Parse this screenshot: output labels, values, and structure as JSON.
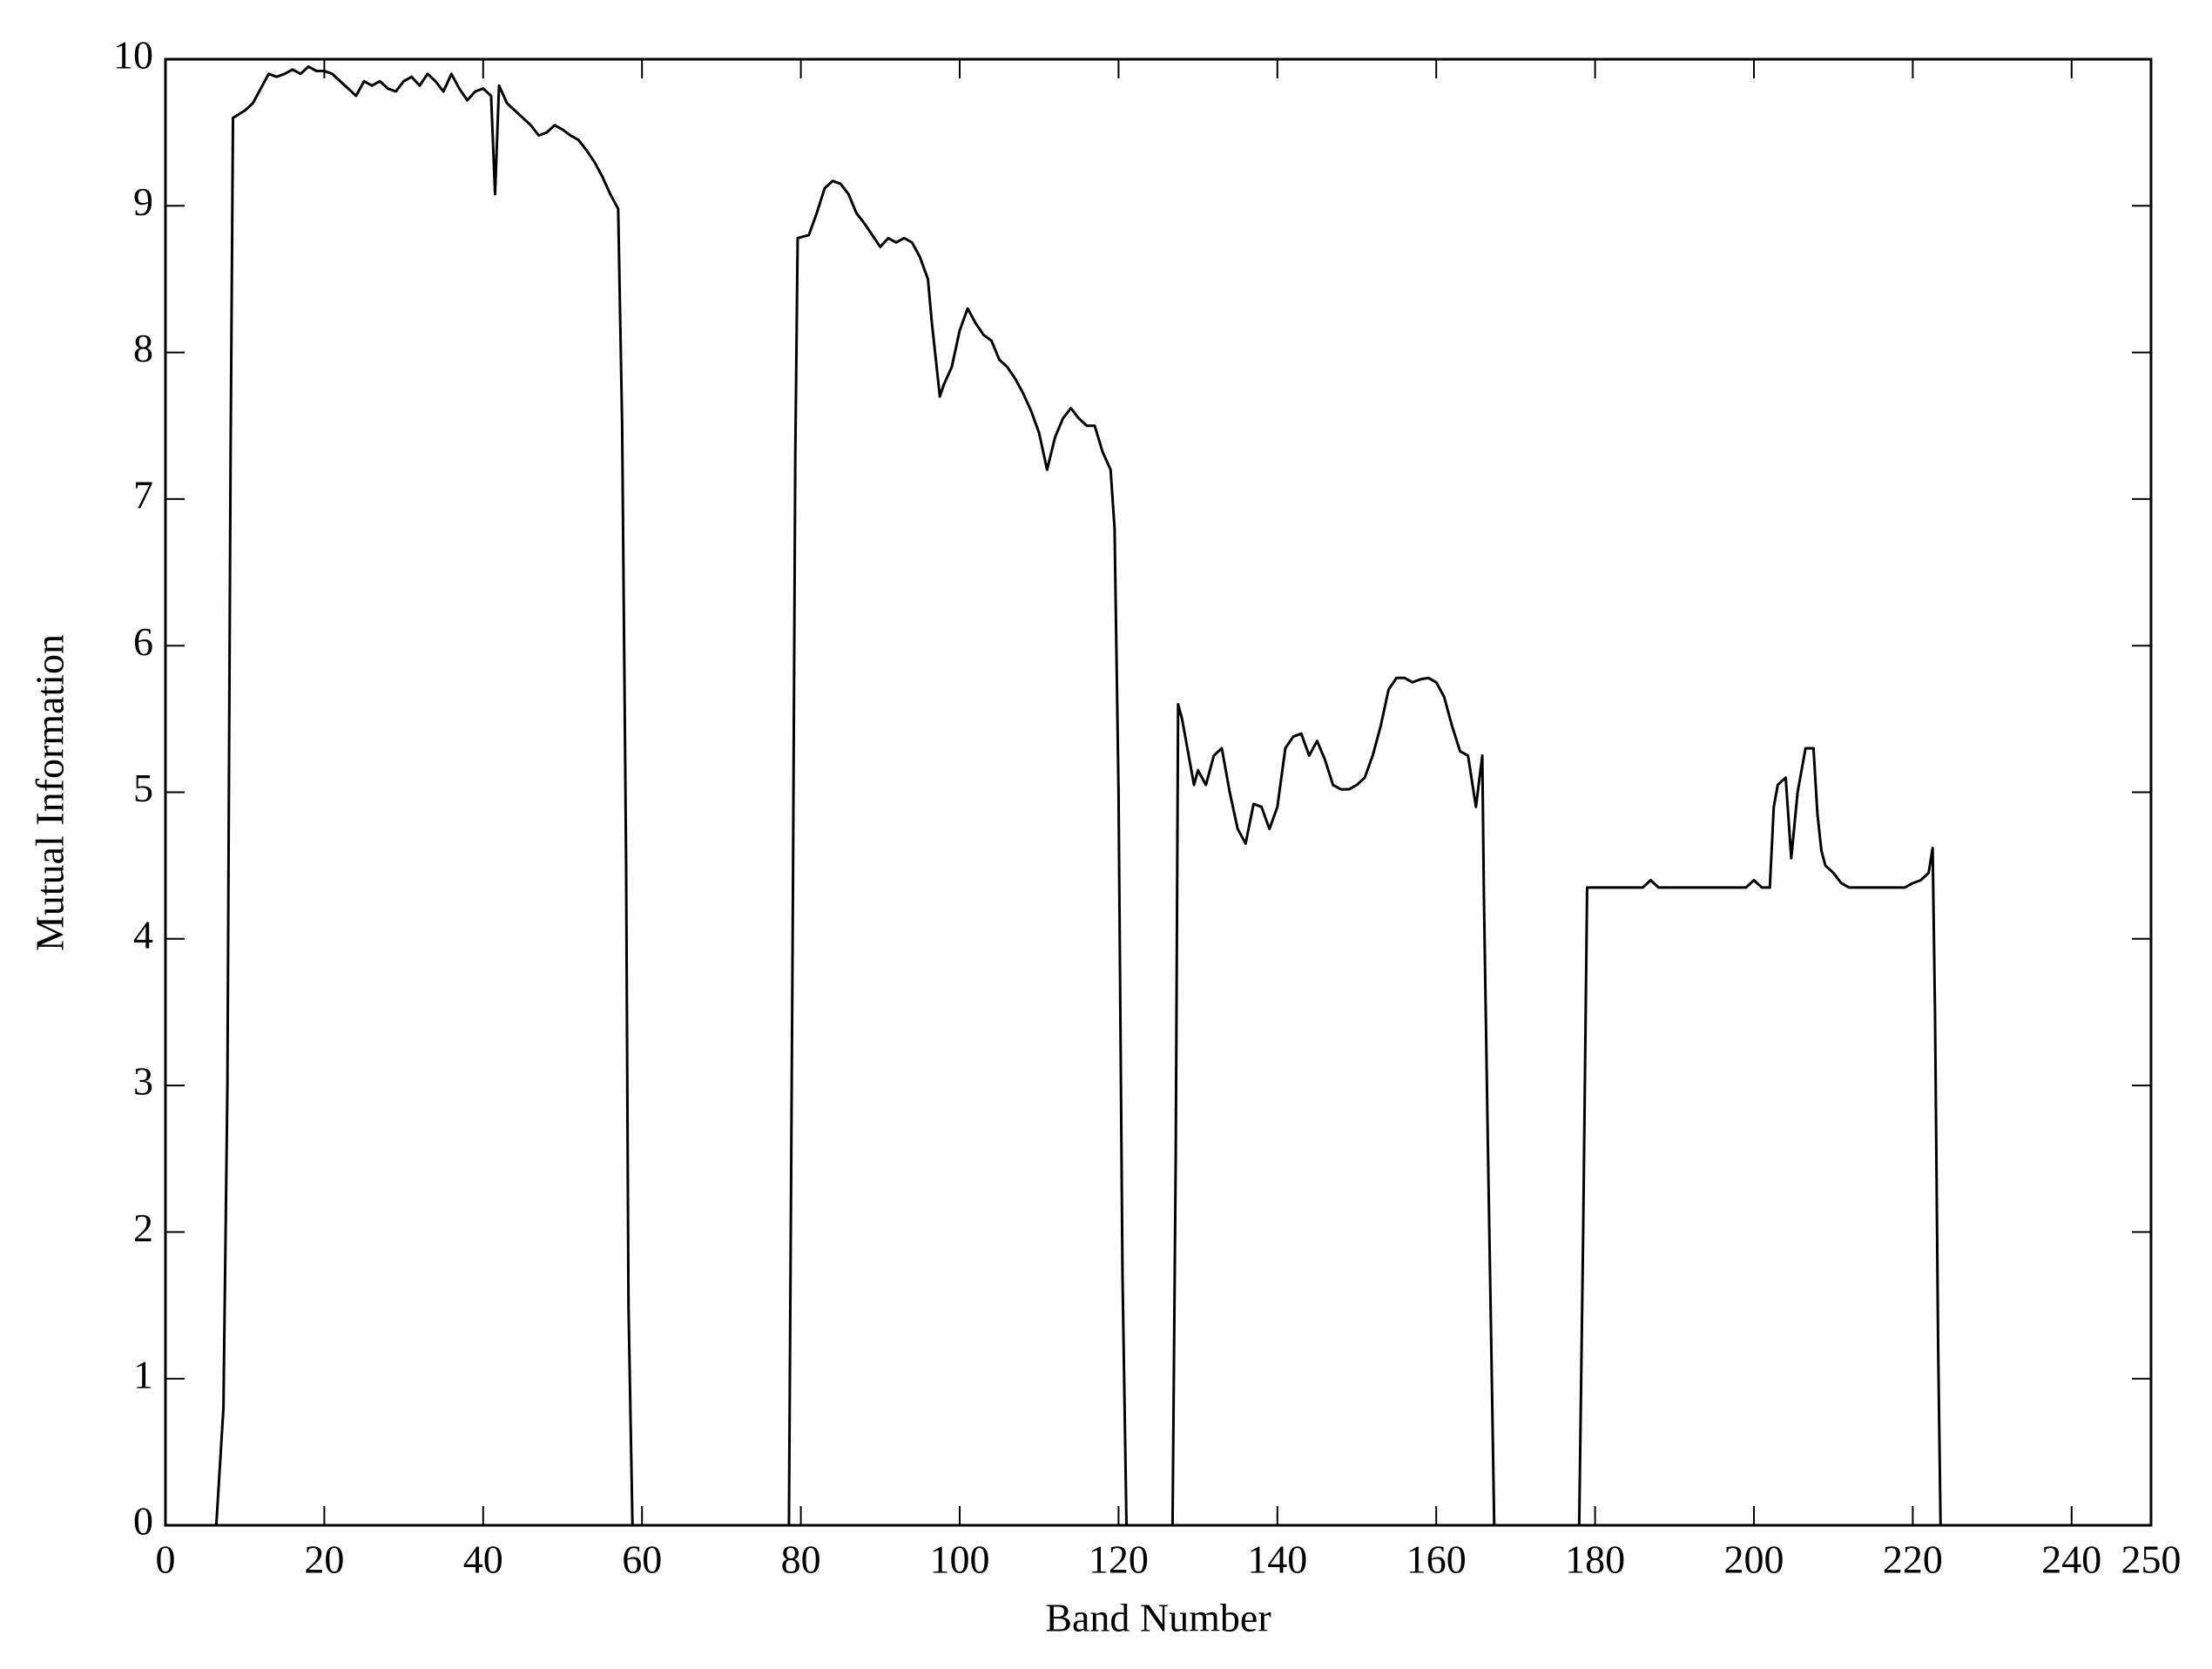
{
  "chart_data": {
    "type": "line",
    "x_label": "Band Number",
    "y_label": "Mutual Information",
    "xlim": [
      0,
      250
    ],
    "ylim": [
      0,
      10
    ],
    "xticks": [
      0,
      20,
      40,
      60,
      80,
      100,
      120,
      140,
      160,
      180,
      200,
      220,
      240,
      250
    ],
    "yticks": [
      0,
      1,
      2,
      3,
      4,
      5,
      6,
      7,
      8,
      9,
      10
    ],
    "series": [
      {
        "color": "#000000",
        "x": [
          6.4,
          7.3,
          7.8,
          8.2,
          8.5,
          10,
          11,
          12,
          13,
          14,
          15,
          16,
          17,
          18,
          19,
          20,
          21,
          22,
          23,
          24,
          25,
          26,
          27,
          28,
          29,
          30,
          31,
          32,
          33,
          34,
          35,
          36,
          37,
          38,
          39,
          40,
          41,
          41.5,
          42,
          43,
          44,
          45,
          46,
          47,
          48,
          49,
          50,
          51,
          52,
          53,
          54,
          55,
          56,
          57,
          57.5,
          58,
          58.3,
          58.8,
          68,
          78.5,
          79,
          79.3,
          79.6,
          81,
          82,
          83,
          84,
          85,
          86,
          87,
          88,
          89,
          90,
          91,
          92,
          93,
          94,
          95,
          96,
          96.5,
          97.5,
          98,
          99,
          100,
          101,
          102,
          103,
          104,
          105,
          106,
          107,
          108,
          109,
          110,
          111,
          112,
          113,
          114,
          115,
          116,
          117,
          118,
          119,
          119.5,
          120,
          120.5,
          121,
          124,
          126.8,
          127.2,
          127.5,
          128,
          129,
          129.5,
          130,
          131,
          132,
          133,
          134,
          135,
          136,
          137,
          138,
          139,
          140,
          141,
          142,
          143,
          144,
          145,
          146,
          147,
          148,
          149,
          150,
          151,
          152,
          153,
          154,
          155,
          156,
          157,
          158,
          159,
          160,
          161,
          162,
          163,
          164,
          165,
          165.8,
          166,
          166.5,
          167,
          167.3,
          172,
          178,
          178.5,
          179,
          186,
          187,
          188,
          199,
          200,
          201,
          202,
          202.5,
          203,
          204,
          204.7,
          205.5,
          206.5,
          207.5,
          208,
          208.5,
          209,
          210,
          211,
          212,
          219,
          220,
          221,
          222,
          222.5,
          222.8,
          223.2,
          223.5
        ],
        "values": [
          0,
          0.8,
          3,
          7.3,
          9.6,
          9.65,
          9.7,
          9.8,
          9.9,
          9.88,
          9.9,
          9.93,
          9.9,
          9.95,
          9.92,
          9.92,
          9.9,
          9.85,
          9.8,
          9.75,
          9.85,
          9.82,
          9.85,
          9.8,
          9.78,
          9.85,
          9.88,
          9.82,
          9.9,
          9.85,
          9.78,
          9.9,
          9.8,
          9.72,
          9.78,
          9.8,
          9.75,
          9.08,
          9.82,
          9.7,
          9.65,
          9.6,
          9.55,
          9.48,
          9.5,
          9.55,
          9.52,
          9.48,
          9.45,
          9.38,
          9.3,
          9.2,
          9.08,
          8.98,
          7.5,
          4.5,
          1.5,
          0,
          null,
          0,
          4.3,
          7.3,
          8.78,
          8.8,
          8.95,
          9.12,
          9.17,
          9.15,
          9.08,
          8.95,
          8.88,
          8.8,
          8.72,
          8.78,
          8.75,
          8.78,
          8.75,
          8.65,
          8.5,
          8.2,
          7.7,
          7.78,
          7.9,
          8.15,
          8.3,
          8.2,
          8.12,
          8.08,
          7.95,
          7.9,
          7.82,
          7.72,
          7.6,
          7.45,
          7.2,
          7.42,
          7.55,
          7.62,
          7.55,
          7.5,
          7.5,
          7.32,
          7.2,
          6.8,
          5,
          1.7,
          0,
          null,
          0,
          2.5,
          5.6,
          5.5,
          5.2,
          5.05,
          5.15,
          5.05,
          5.25,
          5.3,
          5,
          4.75,
          4.65,
          4.92,
          4.9,
          4.75,
          4.9,
          5.3,
          5.38,
          5.4,
          5.25,
          5.35,
          5.22,
          5.05,
          5.02,
          5.02,
          5.05,
          5.1,
          5.25,
          5.45,
          5.7,
          5.78,
          5.78,
          5.75,
          5.77,
          5.78,
          5.75,
          5.65,
          5.45,
          5.28,
          5.25,
          4.9,
          5.25,
          4.3,
          2.6,
          1,
          0,
          null,
          0,
          2,
          4.35,
          4.35,
          4.4,
          4.35,
          4.35,
          4.4,
          4.35,
          4.35,
          4.9,
          5.05,
          5.1,
          4.55,
          5,
          5.3,
          5.3,
          4.85,
          4.6,
          4.5,
          4.45,
          4.38,
          4.35,
          4.35,
          4.38,
          4.4,
          4.45,
          4.62,
          3.5,
          1.2,
          0
        ]
      }
    ]
  }
}
